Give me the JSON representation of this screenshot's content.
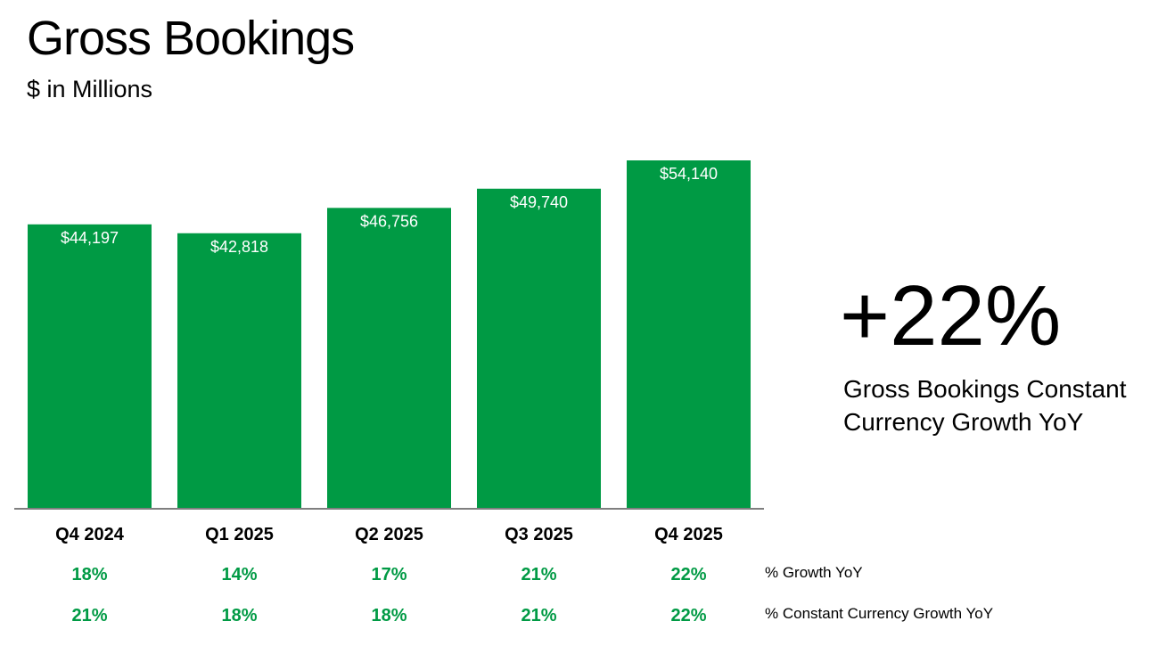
{
  "header": {
    "title": "Gross Bookings",
    "subtitle": "$ in Millions"
  },
  "highlight": {
    "value": "+22%",
    "label": "Gross Bookings Constant Currency Growth YoY"
  },
  "colors": {
    "bar": "#009A44",
    "growth_text": "#009A44",
    "axis": "#7f7f7f",
    "bar_label": "#ffffff"
  },
  "chart_data": {
    "type": "bar",
    "title": "Gross Bookings",
    "subtitle": "$ in Millions",
    "categories": [
      "Q4 2024",
      "Q1 2025",
      "Q2 2025",
      "Q3 2025",
      "Q4 2025"
    ],
    "values": [
      44197,
      42818,
      46756,
      49740,
      54140
    ],
    "value_labels": [
      "$44,197",
      "$42,818",
      "$46,756",
      "$49,740",
      "$54,140"
    ],
    "grid": false,
    "legend": "none",
    "rows": [
      {
        "label": "% Growth YoY",
        "values": [
          "18%",
          "14%",
          "17%",
          "21%",
          "22%"
        ]
      },
      {
        "label": "% Constant Currency Growth YoY",
        "values": [
          "21%",
          "18%",
          "18%",
          "21%",
          "22%"
        ]
      }
    ]
  }
}
